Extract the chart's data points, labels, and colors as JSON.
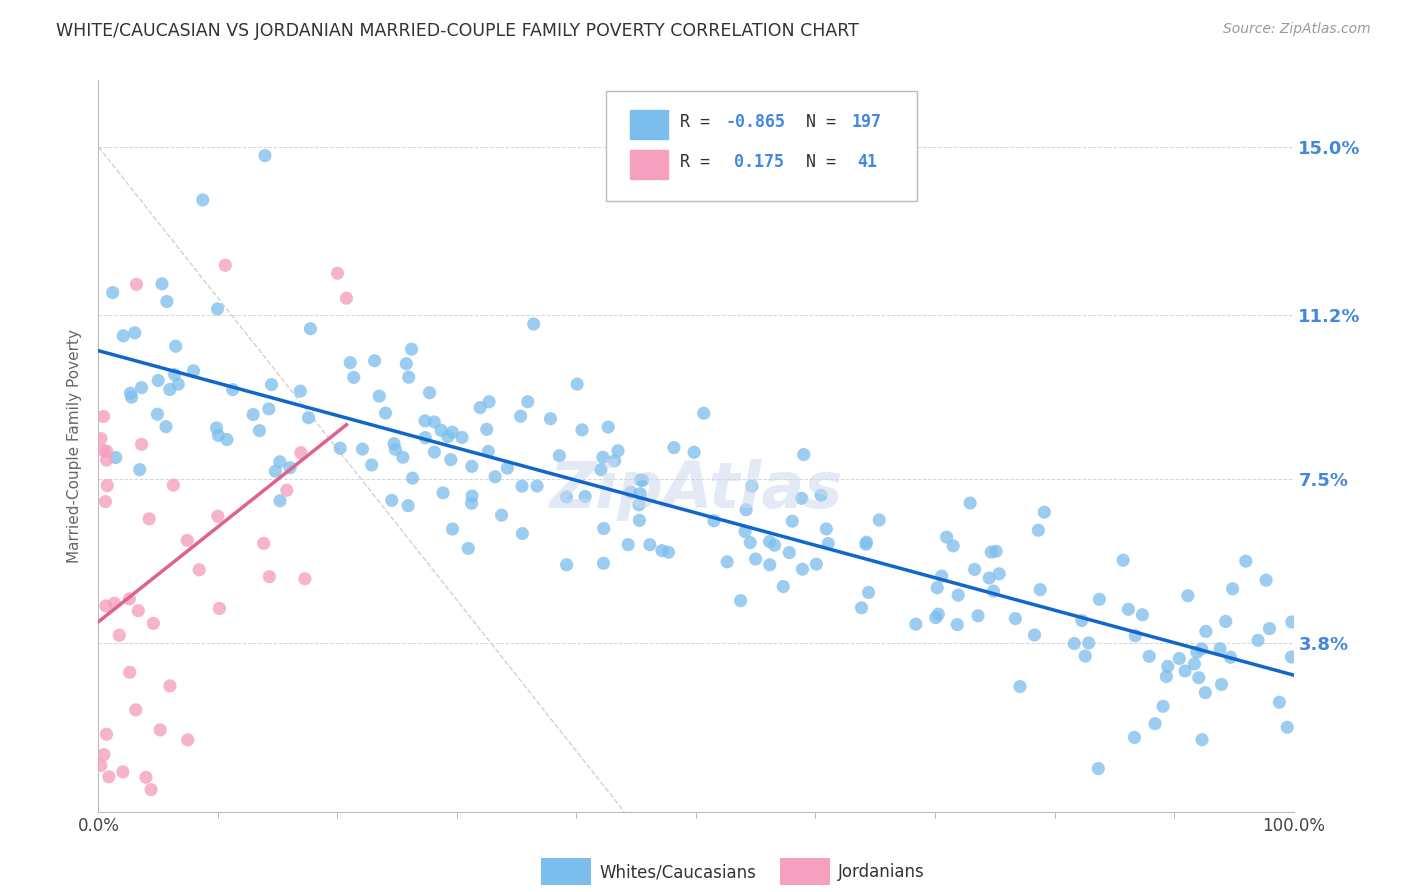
{
  "title": "WHITE/CAUCASIAN VS JORDANIAN MARRIED-COUPLE FAMILY POVERTY CORRELATION CHART",
  "source": "Source: ZipAtlas.com",
  "ylabel": "Married-Couple Family Poverty",
  "yticks": [
    0.038,
    0.075,
    0.112,
    0.15
  ],
  "ytick_labels": [
    "3.8%",
    "7.5%",
    "11.2%",
    "15.0%"
  ],
  "xlim": [
    0.0,
    1.0
  ],
  "ylim": [
    0.0,
    0.165
  ],
  "blue_R": -0.865,
  "blue_N": 197,
  "pink_R": 0.175,
  "pink_N": 41,
  "blue_color": "#7bbded",
  "pink_color": "#f4a0be",
  "blue_label": "Whites/Caucasians",
  "pink_label": "Jordanians",
  "background_color": "#ffffff",
  "grid_color": "#cccccc",
  "title_color": "#333333",
  "axis_label_color": "#666666",
  "ytick_color": "#4488dd",
  "xtick_color": "#444444",
  "source_color": "#999999",
  "watermark_color": "#ccd8ee",
  "blue_line_color": "#1166cc",
  "pink_line_color": "#e06090",
  "diagonal_color": "#cccccc",
  "legend_text_color": "#333333",
  "legend_R_color": "#4488dd"
}
